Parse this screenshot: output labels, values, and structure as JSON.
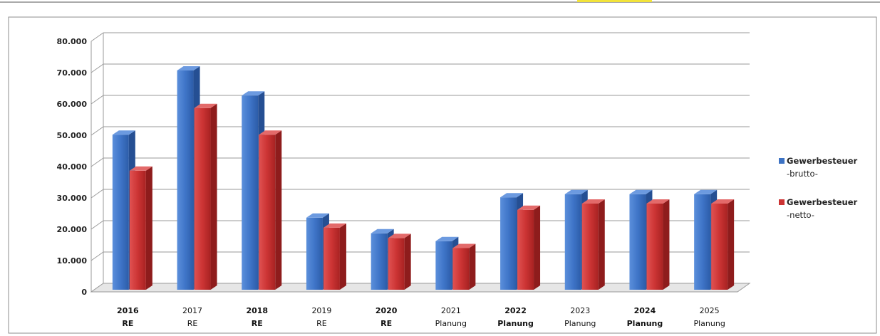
{
  "chart_data": {
    "type": "bar",
    "title": "",
    "xlabel": "",
    "ylabel": "",
    "categories": [
      {
        "year": "2016",
        "kind": "RE",
        "bold": true
      },
      {
        "year": "2017",
        "kind": "RE",
        "bold": false
      },
      {
        "year": "2018",
        "kind": "RE",
        "bold": true
      },
      {
        "year": "2019",
        "kind": "RE",
        "bold": false
      },
      {
        "year": "2020",
        "kind": "RE",
        "bold": true
      },
      {
        "year": "2021",
        "kind": "Planung",
        "bold": false
      },
      {
        "year": "2022",
        "kind": "Planung",
        "bold": true
      },
      {
        "year": "2023",
        "kind": "Planung",
        "bold": false
      },
      {
        "year": "2024",
        "kind": "Planung",
        "bold": true
      },
      {
        "year": "2025",
        "kind": "Planung",
        "bold": false
      }
    ],
    "series": [
      {
        "name_line1": "Gewerbesteuer",
        "name_line2": "-brutto-",
        "color": "#3d73c4",
        "values": [
          49500,
          70000,
          62000,
          23000,
          18000,
          15500,
          29500,
          30500,
          30500,
          30500
        ]
      },
      {
        "name_line1": "Gewerbesteuer",
        "name_line2": "-netto-",
        "color": "#cc3333",
        "values": [
          38000,
          58000,
          49500,
          19800,
          16500,
          13300,
          25500,
          27500,
          27500,
          27500
        ]
      }
    ],
    "ylim": [
      0,
      80000
    ],
    "yticks": [
      "0",
      "10.000",
      "20.000",
      "30.000",
      "40.000",
      "50.000",
      "60.000",
      "70.000",
      "80.000"
    ],
    "grid": true,
    "legend_position": "right"
  }
}
